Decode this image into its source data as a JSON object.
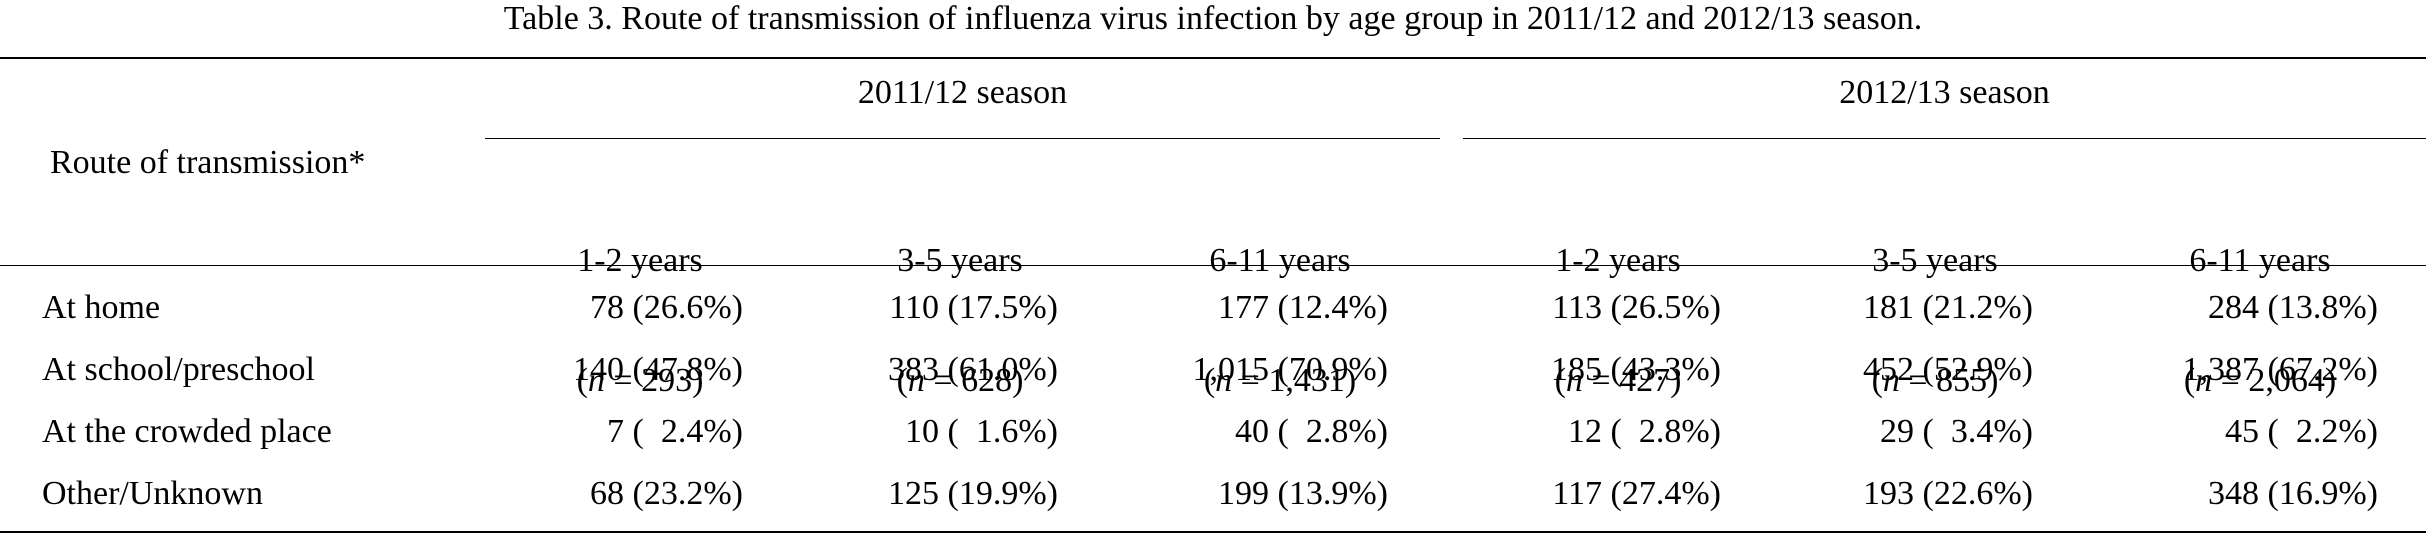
{
  "caption": "Table 3.  Route of transmission of influenza virus infection by age group in 2011/12 and 2012/13 season.",
  "row_header": "Route of transmission*",
  "seasons": [
    {
      "label": "2011/12 season"
    },
    {
      "label": "2012/13 season"
    }
  ],
  "columns": [
    {
      "age": "1-2 years",
      "n_prefix": "(",
      "n_italic": "n",
      "n_rest": " = 293)"
    },
    {
      "age": "3-5 years",
      "n_prefix": "(",
      "n_italic": "n",
      "n_rest": " = 628)"
    },
    {
      "age": "6-11 years",
      "n_prefix": "(",
      "n_italic": "n",
      "n_rest": " = 1,431)"
    },
    {
      "age": "1-2 years",
      "n_prefix": "(",
      "n_italic": "n",
      "n_rest": " = 427)"
    },
    {
      "age": "3-5 years",
      "n_prefix": "(",
      "n_italic": "n",
      "n_rest": " = 855)"
    },
    {
      "age": "6-11 years",
      "n_prefix": "(",
      "n_italic": "n",
      "n_rest": " = 2,064)"
    }
  ],
  "rows": [
    {
      "label": "At home",
      "cells": [
        "78 (26.6%)",
        "110 (17.5%)",
        "177 (12.4%)",
        "113 (26.5%)",
        "181 (21.2%)",
        "284 (13.8%)"
      ]
    },
    {
      "label": "At school/preschool",
      "cells": [
        "140 (47.8%)",
        "383 (61.0%)",
        "1,015 (70.9%)",
        "185 (43.3%)",
        "452 (52.9%)",
        "1,387 (67.2%)"
      ]
    },
    {
      "label": "At the crowded place",
      "cells": [
        "7 (  2.4%)",
        "10 (  1.6%)",
        "40 (  2.8%)",
        "12 (  2.8%)",
        "29 (  3.4%)",
        "45 (  2.2%)"
      ]
    },
    {
      "label": "Other/Unknown",
      "cells": [
        "68 (23.2%)",
        "125 (19.9%)",
        "199 (13.9%)",
        "117 (27.4%)",
        "193 (22.6%)",
        "348 (16.9%)"
      ]
    }
  ]
}
